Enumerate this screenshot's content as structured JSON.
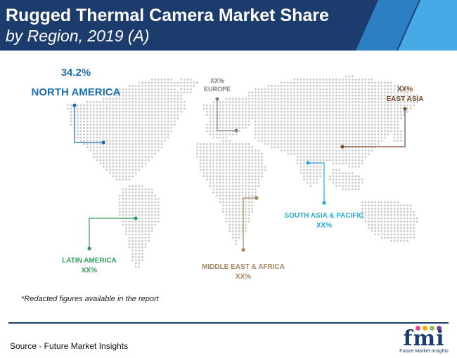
{
  "title": {
    "line1": "Rugged Thermal Camera Market Share",
    "line2": "by Region, 2019 (A)"
  },
  "note": "*Redacted figures available in the report",
  "source": "Source - Future Market Insights",
  "logo": {
    "text": "fmi",
    "subtitle": "Future Market Insights",
    "dot_colors": [
      "#e84c8b",
      "#f2a900",
      "#8bc34a",
      "#7b3fa0"
    ]
  },
  "colors": {
    "header_bg": "#1d3c6e",
    "map_dots": "#c9c9c9"
  },
  "chart_data": {
    "type": "map",
    "title": "Rugged Thermal Camera Market Share by Region, 2019 (A)",
    "series": [
      {
        "region": "NORTH AMERICA",
        "value": "34.2%",
        "color": "#1f6fad"
      },
      {
        "region": "EUROPE",
        "value": "XX%",
        "color": "#808080"
      },
      {
        "region": "EAST ASIA",
        "value": "XX%",
        "color": "#7a4a2a"
      },
      {
        "region": "SOUTH ASIA & PACIFIC",
        "value": "XX%",
        "color": "#27a9d9"
      },
      {
        "region": "MIDDLE EAST & AFRICA",
        "value": "XX%",
        "color": "#a58660"
      },
      {
        "region": "LATIN AMERICA",
        "value": "XX%",
        "color": "#2e9e5b"
      }
    ]
  }
}
